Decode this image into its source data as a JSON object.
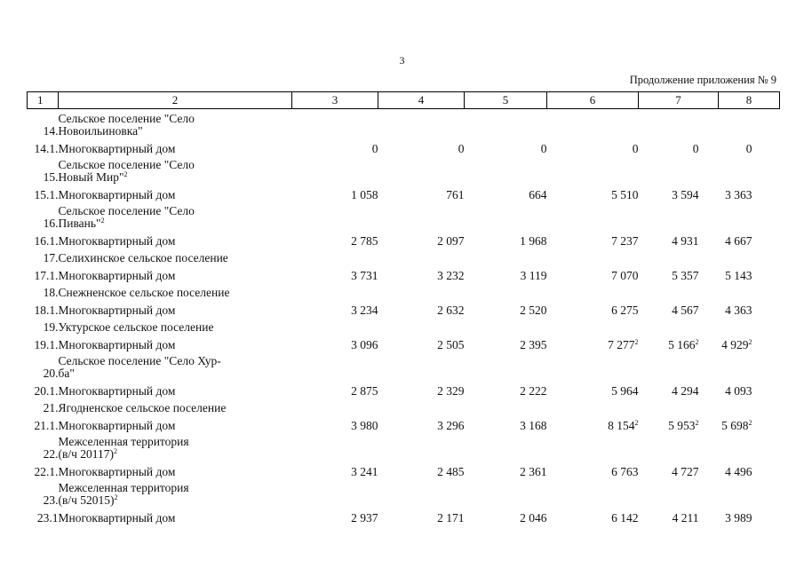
{
  "page_number": "3",
  "continuation": "Продолжение приложения № 9",
  "columns": [
    "1",
    "2",
    "3",
    "4",
    "5",
    "6",
    "7",
    "8"
  ],
  "rows": [
    {
      "num": "14.",
      "name": [
        "Сельское поселение \"Село",
        "Новоильиновка\""
      ],
      "sup": "",
      "values": []
    },
    {
      "num": "14.1.",
      "name": [
        "Многоквартирный дом"
      ],
      "sup": "",
      "values": [
        "0",
        "0",
        "0",
        "0",
        "0",
        "0"
      ],
      "vsup": [
        "",
        "",
        "",
        "",
        "",
        ""
      ]
    },
    {
      "num": "15.",
      "name": [
        "Сельское поселение \"Село",
        "Новый Мир\""
      ],
      "sup": "2",
      "values": []
    },
    {
      "num": "15.1.",
      "name": [
        "Многоквартирный дом"
      ],
      "sup": "",
      "values": [
        "1 058",
        "761",
        "664",
        "5 510",
        "3 594",
        "3 363"
      ],
      "vsup": [
        "",
        "",
        "",
        "",
        "",
        ""
      ]
    },
    {
      "num": "16.",
      "name": [
        "Сельское поселение \"Село",
        "Пивань\""
      ],
      "sup": "2",
      "values": []
    },
    {
      "num": "16.1.",
      "name": [
        "Многоквартирный дом"
      ],
      "sup": "",
      "values": [
        "2 785",
        "2 097",
        "1 968",
        "7 237",
        "4 931",
        "4 667"
      ],
      "vsup": [
        "",
        "",
        "",
        "",
        "",
        ""
      ]
    },
    {
      "num": "17.",
      "name": [
        "Селихинское сельское поселение"
      ],
      "sup": "",
      "values": []
    },
    {
      "num": "17.1.",
      "name": [
        "Многоквартирный дом"
      ],
      "sup": "",
      "values": [
        "3 731",
        "3 232",
        "3 119",
        "7 070",
        "5 357",
        "5 143"
      ],
      "vsup": [
        "",
        "",
        "",
        "",
        "",
        ""
      ]
    },
    {
      "num": "18.",
      "name": [
        "Снежненское сельское поселение"
      ],
      "sup": "",
      "values": []
    },
    {
      "num": "18.1.",
      "name": [
        "Многоквартирный дом"
      ],
      "sup": "",
      "values": [
        "3 234",
        "2 632",
        "2 520",
        "6 275",
        "4 567",
        "4 363"
      ],
      "vsup": [
        "",
        "",
        "",
        "",
        "",
        ""
      ]
    },
    {
      "num": "19.",
      "name": [
        "Уктурское сельское поселение"
      ],
      "sup": "",
      "values": []
    },
    {
      "num": "19.1.",
      "name": [
        "Многоквартирный дом"
      ],
      "sup": "",
      "values": [
        "3 096",
        "2 505",
        "2 395",
        "7 277",
        "5 166",
        "4 929"
      ],
      "vsup": [
        "",
        "",
        "",
        "2",
        "2",
        "2"
      ]
    },
    {
      "num": "20.",
      "name": [
        "Сельское поселение \"Село Хур-",
        "ба\""
      ],
      "sup": "",
      "values": []
    },
    {
      "num": "20.1.",
      "name": [
        "Многоквартирный дом"
      ],
      "sup": "",
      "values": [
        "2 875",
        "2 329",
        "2 222",
        "5 964",
        "4 294",
        "4 093"
      ],
      "vsup": [
        "",
        "",
        "",
        "",
        "",
        ""
      ]
    },
    {
      "num": "21.",
      "name": [
        "Ягодненское сельское поселение"
      ],
      "sup": "",
      "values": []
    },
    {
      "num": "21.1.",
      "name": [
        "Многоквартирный дом"
      ],
      "sup": "",
      "values": [
        "3 980",
        "3 296",
        "3 168",
        "8 154",
        "5 953",
        "5 698"
      ],
      "vsup": [
        "",
        "",
        "",
        "2",
        "2",
        "2"
      ]
    },
    {
      "num": "22.",
      "name": [
        "Межселенная территория",
        "(в/ч 20117)"
      ],
      "sup": "2",
      "values": []
    },
    {
      "num": "22.1.",
      "name": [
        "Многоквартирный дом"
      ],
      "sup": "",
      "values": [
        "3 241",
        "2 485",
        "2 361",
        "6 763",
        "4 727",
        "4 496"
      ],
      "vsup": [
        "",
        "",
        "",
        "",
        "",
        ""
      ]
    },
    {
      "num": "23.",
      "name": [
        "Межселенная территория",
        "(в/ч 52015)"
      ],
      "sup": "2",
      "values": []
    },
    {
      "num": "23.1",
      "name": [
        "Многоквартирный дом"
      ],
      "sup": "",
      "values": [
        "2 937",
        "2 171",
        "2 046",
        "6 142",
        "4 211",
        "3 989"
      ],
      "vsup": [
        "",
        "",
        "",
        "",
        "",
        ""
      ]
    }
  ]
}
